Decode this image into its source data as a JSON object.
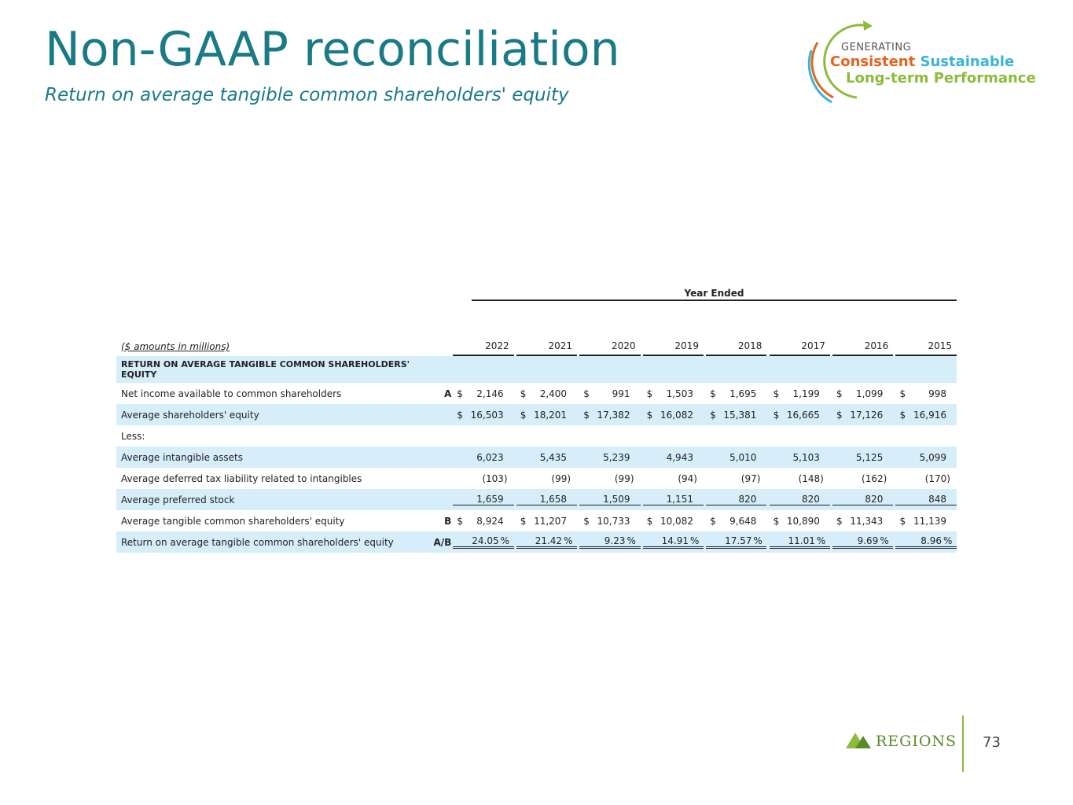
{
  "header": {
    "title": "Non-GAAP reconciliation",
    "subtitle": "Return on average tangible common shareholders' equity"
  },
  "logo": {
    "line1": "GENERATING",
    "consistent": "Consistent",
    "sustainable": "Sustainable",
    "line3": "Long-term Performance"
  },
  "table": {
    "period_header": "Year Ended",
    "units_label": "($ amounts in millions)",
    "years": [
      "2022",
      "2021",
      "2020",
      "2019",
      "2018",
      "2017",
      "2016",
      "2015"
    ],
    "section_title": "RETURN ON AVERAGE TANGIBLE COMMON SHAREHOLDERS' EQUITY",
    "rows": [
      {
        "label": "Net income available to common shareholders",
        "marker": "A",
        "values": [
          "$|2,146",
          "$|2,400",
          "$|991",
          "$|1,503",
          "$|1,695",
          "$|1,199",
          "$|1,099",
          "$|998"
        ]
      },
      {
        "label": "Average shareholders' equity",
        "marker": "",
        "values": [
          "$|16,503",
          "$|18,201",
          "$|17,382",
          "$|16,082",
          "$|15,381",
          "$|16,665",
          "$|17,126",
          "$|16,916"
        ]
      },
      {
        "label": "Less:",
        "marker": "",
        "values": []
      },
      {
        "label": "Average intangible assets",
        "marker": "",
        "values": [
          "6,023",
          "5,435",
          "5,239",
          "4,943",
          "5,010",
          "5,103",
          "5,125",
          "5,099"
        ]
      },
      {
        "label": "Average deferred tax liability related to intangibles",
        "marker": "",
        "values": [
          "(103)",
          "(99)",
          "(99)",
          "(94)",
          "(97)",
          "(148)",
          "(162)",
          "(170)"
        ]
      },
      {
        "label": "Average preferred stock",
        "marker": "",
        "values": [
          "1,659",
          "1,658",
          "1,509",
          "1,151",
          "820",
          "820",
          "820",
          "848"
        ]
      },
      {
        "label": "Average tangible common shareholders' equity",
        "marker": "B",
        "values": [
          "$|8,924",
          "$|11,207",
          "$|10,733",
          "$|10,082",
          "$|9,648",
          "$|10,890",
          "$|11,343",
          "$|11,139"
        ]
      },
      {
        "label": "Return on average tangible common shareholders' equity",
        "marker": "A/B",
        "values": [
          "24.05|%",
          "21.42|%",
          "9.23|%",
          "14.91|%",
          "17.57|%",
          "11.01|%",
          "9.69|%",
          "8.96|%"
        ]
      }
    ]
  },
  "footer": {
    "brand": "REGIONS",
    "page_number": "73"
  },
  "colors": {
    "title": "#1a7a86",
    "row_shade": "#d5eefa",
    "brand_green": "#8dbb3c",
    "orange": "#e0661e",
    "blue": "#3bb4d8"
  }
}
